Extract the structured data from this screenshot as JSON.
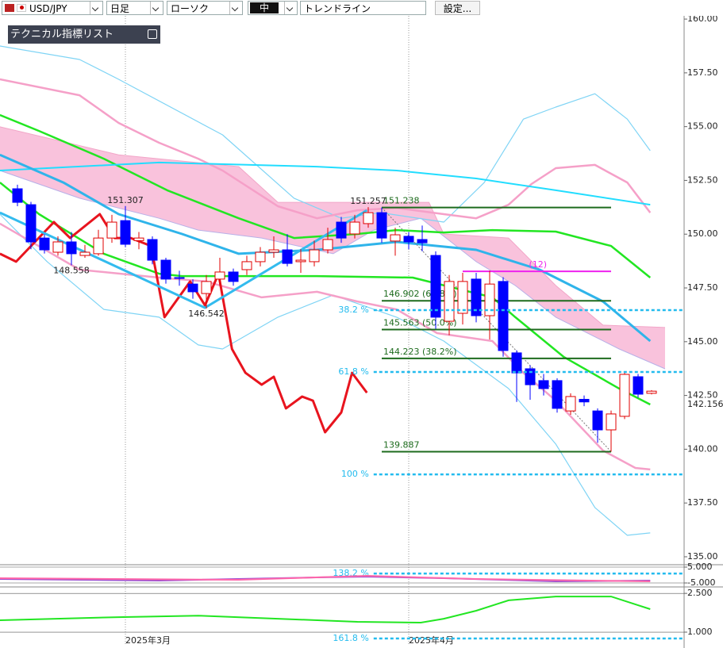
{
  "toolbar": {
    "symbol": "USD/JPY",
    "period": "日足",
    "chart_style": "ローソク",
    "size": "中",
    "tool": "トレンドライン",
    "settings": "設定..."
  },
  "panel": {
    "title": "テクニカル指標リスト"
  },
  "chart_data": [
    {
      "type": "candlestick",
      "categories": [
        null,
        null,
        null,
        null,
        null,
        null,
        null,
        null,
        "2025年3月",
        null,
        null,
        null,
        null,
        null,
        null,
        null,
        null,
        null,
        null,
        null,
        null,
        null,
        null,
        null,
        null,
        null,
        null,
        null,
        null,
        "2025年4月",
        null,
        null,
        null,
        null,
        null,
        null,
        null,
        null,
        null,
        null,
        null,
        null,
        null,
        null,
        null,
        null,
        null,
        null
      ],
      "open": [
        152.11,
        151.37,
        149.82,
        149.16,
        149.64,
        149.01,
        149.09,
        149.82,
        150.63,
        149.7,
        149.75,
        148.79,
        147.98,
        147.68,
        147.24,
        147.91,
        148.24,
        148.35,
        148.72,
        149.16,
        149.27,
        148.72,
        148.72,
        149.27,
        150.56,
        150.01,
        150.49,
        151.0,
        149.68,
        149.9,
        149.75,
        149.01,
        145.95,
        146.32,
        147.91,
        146.21,
        147.8,
        144.48,
        143.74,
        143.19,
        143.19,
        141.78,
        142.32,
        141.78,
        140.9,
        141.53,
        143.37,
        142.6
      ],
      "high": [
        152.3,
        151.5,
        150.0,
        149.9,
        150.1,
        149.5,
        150.2,
        150.9,
        151.307,
        150.1,
        149.9,
        148.9,
        148.3,
        147.9,
        148.1,
        148.9,
        148.4,
        149.0,
        149.4,
        149.9,
        150.0,
        149.3,
        149.7,
        150.3,
        150.8,
        150.9,
        151.257,
        151.238,
        150.3,
        150.1,
        150.4,
        149.2,
        148.1,
        148.2,
        148.2,
        148.3,
        148.0,
        144.6,
        143.9,
        143.5,
        143.3,
        142.6,
        142.5,
        141.9,
        141.8,
        143.6,
        143.5,
        142.75
      ],
      "low": [
        151.3,
        149.3,
        149.1,
        149.0,
        148.558,
        148.9,
        149.0,
        149.6,
        149.4,
        149.3,
        148.6,
        147.7,
        147.6,
        147.0,
        146.542,
        147.6,
        147.6,
        148.1,
        148.5,
        148.9,
        148.5,
        148.2,
        148.5,
        149.1,
        149.6,
        149.8,
        150.3,
        149.6,
        149.0,
        149.3,
        149.2,
        145.6,
        145.3,
        145.8,
        145.9,
        145.1,
        144.3,
        142.2,
        142.3,
        142.5,
        141.7,
        141.6,
        142.0,
        140.3,
        139.887,
        141.4,
        142.4,
        142.55
      ],
      "close": [
        151.48,
        149.64,
        149.27,
        149.64,
        149.09,
        149.16,
        149.82,
        150.56,
        149.53,
        149.82,
        148.79,
        147.91,
        147.95,
        147.32,
        147.8,
        148.24,
        147.8,
        148.72,
        149.16,
        149.27,
        148.64,
        148.79,
        149.27,
        149.75,
        149.82,
        150.56,
        151.0,
        149.82,
        149.97,
        149.64,
        149.6,
        146.14,
        147.8,
        147.8,
        146.21,
        147.68,
        144.59,
        143.55,
        143.0,
        142.82,
        141.9,
        142.45,
        142.2,
        140.9,
        141.64,
        143.48,
        142.56,
        142.7
      ],
      "up_color": "#e00000",
      "down_color": "#0000ff",
      "ylim": [
        134.63,
        160.15
      ],
      "yticks": [
        {
          "value": 160,
          "label": "160.00"
        },
        {
          "value": 157.5,
          "label": "157.50"
        },
        {
          "value": 155,
          "label": "155.00"
        },
        {
          "value": 152.5,
          "label": "152.50"
        },
        {
          "value": 150,
          "label": "150.00"
        },
        {
          "value": 147.5,
          "label": "147.50"
        },
        {
          "value": 145,
          "label": "145.00"
        },
        {
          "value": 142.5,
          "label": "142.50"
        },
        {
          "value": 140,
          "label": "140.00"
        },
        {
          "value": 137.5,
          "label": "137.50"
        },
        {
          "value": 135,
          "label": "135.00"
        }
      ],
      "cloud": {
        "color": "#f9c2dc",
        "upper": {
          "color": "#f2a6c8",
          "x": [
            -1.3,
            7.5,
            16.4,
            19.3,
            30.5,
            31.6,
            36.4,
            39.9,
            43.4,
            48.0
          ],
          "values": [
            154.99,
            153.69,
            153.14,
            151.48,
            151.48,
            150.01,
            149.82,
            147.61,
            145.77,
            145.66
          ]
        },
        "lower": {
          "color": "#b8b0e8",
          "x": [
            -1.3,
            4.6,
            10.5,
            13.4,
            18.1,
            23.4,
            26.4,
            29.9,
            34.0,
            36.9,
            39.9,
            44.6,
            48.0
          ],
          "values": [
            152.96,
            151.67,
            150.74,
            150.19,
            149.82,
            149.09,
            150.19,
            150.74,
            148.72,
            147.61,
            146.14,
            144.66,
            143.74
          ]
        }
      },
      "lines": [
        {
          "color": "#7fd4f5",
          "width": 1.2,
          "x": [
            -1.3,
            4.6,
            7.5,
            15.2,
            20.5,
            24.0,
            26.9,
            31.6,
            34.6,
            37.5,
            39.9,
            42.8,
            45.2,
            46.9
          ],
          "values": [
            158.75,
            158.12,
            157.2,
            154.62,
            151.67,
            150.74,
            151.0,
            150.56,
            152.4,
            155.35,
            155.91,
            156.53,
            155.35,
            153.88
          ]
        },
        {
          "color": "#7fd4f5",
          "width": 1.2,
          "x": [
            -1.3,
            2.2,
            6.4,
            10.5,
            13.4,
            15.2,
            19.3,
            23.4,
            28.1,
            31.6,
            36.4,
            39.9,
            42.8,
            45.2,
            46.9
          ],
          "values": [
            150.93,
            148.72,
            146.5,
            146.14,
            144.85,
            144.66,
            146.14,
            147.17,
            146.14,
            145.03,
            142.82,
            140.24,
            137.29,
            136.0,
            136.11
          ]
        },
        {
          "color": "#f5a0c8",
          "width": 2.5,
          "x": [
            -1.3,
            4.6,
            7.5,
            10.5,
            13.4,
            15.2,
            19.3,
            22.2,
            25.2,
            28.1,
            31.6,
            34.0,
            36.4,
            38.1,
            39.9,
            42.8,
            45.2,
            46.9
          ],
          "values": [
            157.2,
            156.46,
            155.17,
            154.25,
            153.51,
            152.96,
            151.3,
            150.74,
            151.11,
            151.22,
            150.93,
            150.74,
            151.37,
            152.33,
            153.07,
            153.22,
            152.4,
            151.0
          ]
        },
        {
          "color": "#f5a0c8",
          "width": 2.5,
          "x": [
            -1.3,
            4.6,
            10.5,
            14.0,
            18.1,
            22.2,
            25.2,
            28.1,
            31.1,
            35.2,
            37.5,
            39.9,
            43.4,
            45.8,
            46.9
          ],
          "values": [
            150.49,
            148.35,
            147.98,
            147.8,
            147.06,
            147.32,
            146.87,
            146.5,
            145.4,
            145.03,
            143.55,
            142.26,
            139.94,
            139.13,
            139.06
          ]
        },
        {
          "color": "#22e622",
          "width": 2.5,
          "x": [
            -1.3,
            1.6,
            6.4,
            11.1,
            16.4,
            20.5,
            25.2,
            28.1,
            31.6,
            35.2,
            39.9,
            44.0,
            46.9
          ],
          "values": [
            155.54,
            154.8,
            153.51,
            152.04,
            150.74,
            149.82,
            150.01,
            150.19,
            150.08,
            150.19,
            150.12,
            149.45,
            147.98
          ]
        },
        {
          "color": "#22e622",
          "width": 2.5,
          "x": [
            -1.3,
            1.6,
            6.4,
            10.5,
            12.2,
            22.2,
            29.3,
            32.8,
            35.2,
            36.9,
            40.5,
            44.6,
            46.9
          ],
          "values": [
            152.4,
            150.93,
            149.09,
            148.16,
            148.05,
            148.05,
            147.98,
            147.43,
            147.06,
            146.14,
            144.29,
            142.82,
            142.08
          ]
        },
        {
          "color": "#22ddff",
          "width": 2,
          "x": [
            -1.3,
            10.5,
            22.2,
            28.1,
            34.0,
            39.9,
            46.9
          ],
          "values": [
            152.96,
            153.33,
            153.14,
            152.96,
            152.59,
            152.04,
            151.37
          ]
        },
        {
          "color": "#2fb4ea",
          "width": 3,
          "x": [
            -1.3,
            3.4,
            7.5,
            12.2,
            16.4,
            22.2,
            28.1,
            34.0,
            38.7,
            43.4,
            46.9
          ],
          "values": [
            153.69,
            152.4,
            150.93,
            150.01,
            149.09,
            149.27,
            149.64,
            149.27,
            148.35,
            146.87,
            145.03
          ]
        },
        {
          "color": "#e8141e",
          "width": 3,
          "x": [
            -1.3,
            -0.1,
            2.7,
            3.9,
            6.1,
            7.2,
            8.4,
            9.9,
            10.9,
            12.8,
            13.9,
            14.9,
            15.9,
            16.9,
            18.1,
            19.0,
            19.9,
            21.1,
            21.9,
            22.8,
            24.0,
            24.8,
            25.9
          ],
          "values": [
            149.09,
            148.72,
            150.56,
            149.82,
            150.93,
            149.82,
            149.82,
            149.45,
            146.14,
            147.8,
            146.69,
            148.16,
            144.66,
            143.55,
            143.0,
            143.37,
            141.9,
            142.45,
            142.26,
            140.79,
            141.71,
            143.55,
            142.63
          ]
        },
        {
          "color": "#33bbee",
          "width": 3,
          "x": [
            -1.3,
            13.9,
            25.9
          ],
          "values": [
            151.0,
            146.58,
            151.11
          ]
        }
      ],
      "levels": [
        {
          "value": 151.238,
          "label": "151.238",
          "color": "#1d6b1d",
          "x": [
            27,
            44
          ]
        },
        {
          "value": 146.902,
          "label": "146.902 (61.8%)",
          "color": "#1d6b1d",
          "x": [
            27,
            44
          ]
        },
        {
          "value": 145.563,
          "label": "145.563 (50.0%)",
          "color": "#1d6b1d",
          "x": [
            27,
            44
          ]
        },
        {
          "value": 144.223,
          "label": "144.223 (38.2%)",
          "color": "#1d6b1d",
          "x": [
            27,
            44
          ]
        },
        {
          "value": 139.887,
          "label": "139.887",
          "color": "#1d6b1d",
          "x": [
            27,
            44
          ]
        },
        {
          "value": 148.27,
          "label": "(12)",
          "color": "#ee22ee",
          "x": [
            33,
            44
          ]
        }
      ],
      "price_labels": [
        {
          "value": 151.307,
          "label": "151.307",
          "x": 8
        },
        {
          "value": 148.558,
          "label": "148.558",
          "x": 4
        },
        {
          "value": 146.542,
          "label": "146.542",
          "x": 14
        },
        {
          "value": 151.257,
          "label": "151.257",
          "x": 26
        }
      ],
      "fib_levels": {
        "color": "#22bbee",
        "x_start": 26.4,
        "items": [
          {
            "value": 146.47,
            "label": "38.2 %"
          },
          {
            "value": 143.59,
            "label": "61.8 %"
          },
          {
            "value": 138.83,
            "label": "100 %"
          },
          {
            "value": 134.22,
            "label": "138.2 %"
          },
          {
            "value": 131.2,
            "label": "161.8 %"
          }
        ]
      },
      "current_price": {
        "value": 142.156,
        "label": "142.156"
      }
    },
    {
      "type": "line",
      "ylim": [
        -7.5,
        6.5
      ],
      "yticks": [
        {
          "value": 5,
          "label": "5.000"
        },
        {
          "value": -5,
          "label": "-5.000"
        }
      ],
      "series": [
        {
          "color": "#9b4fd0",
          "x": [
            -1.3,
            10.5,
            22.2,
            25.9,
            31.6,
            39.9,
            46.9
          ],
          "values": [
            -2.5,
            -3.5,
            -1.5,
            -1.0,
            -2.0,
            -4.0,
            -3.5
          ]
        },
        {
          "color": "#ff66aa",
          "x": [
            -1.3,
            16.4,
            25.9,
            34.0,
            46.9
          ],
          "values": [
            -2.0,
            -3.0,
            -0.5,
            -2.5,
            -4.0
          ]
        }
      ]
    },
    {
      "type": "line",
      "ylim": [
        0.54,
        2.75
      ],
      "yticks": [
        {
          "value": 2.5,
          "label": "2.500"
        },
        {
          "value": 1,
          "label": "1.000"
        }
      ],
      "series": [
        {
          "color": "#22e622",
          "x": [
            -1.3,
            7.5,
            13.4,
            19.3,
            25.2,
            29.9,
            31.6,
            34.0,
            36.4,
            39.9,
            44.0,
            46.9
          ],
          "values": [
            1.46,
            1.58,
            1.64,
            1.52,
            1.4,
            1.37,
            1.52,
            1.83,
            2.23,
            2.38,
            2.38,
            1.89
          ]
        }
      ]
    }
  ]
}
